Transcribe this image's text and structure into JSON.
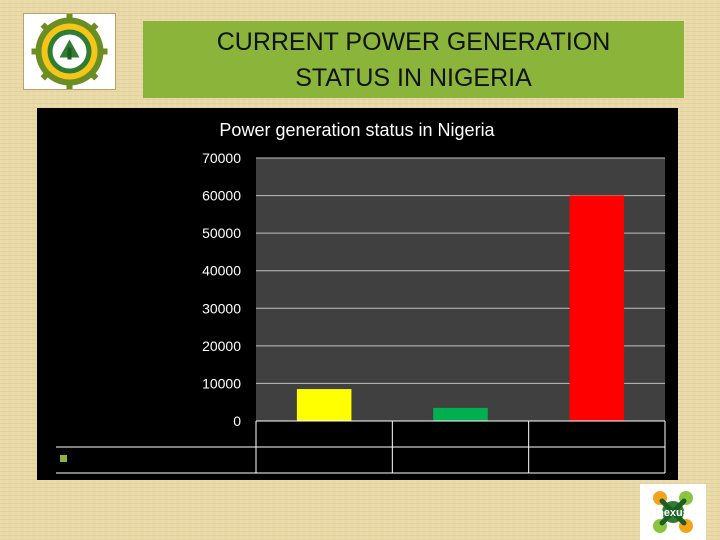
{
  "header": {
    "title": "CURRENT POWER GENERATION\nSTATUS IN NIGERIA"
  },
  "logo_left": {
    "icon": "gear-emblem-logo-icon"
  },
  "logo_right": {
    "icon": "nexus-logo-icon",
    "text": "nexus"
  },
  "colors": {
    "title_banner": "#8ab43a",
    "chart_background": "#000000",
    "plot_area": "#404040"
  },
  "chart_data": {
    "type": "bar",
    "title": "Power generation status in Nigeria",
    "categories": [
      "",
      "",
      ""
    ],
    "values": [
      8500,
      3500,
      60000
    ],
    "bar_colors": [
      "#ffff00",
      "#00b050",
      "#ff0000"
    ],
    "ylim": [
      0,
      70000
    ],
    "yticks": [
      0,
      10000,
      20000,
      30000,
      40000,
      50000,
      60000,
      70000
    ],
    "xlabel": "",
    "ylabel": "",
    "grid": true,
    "legend": "bottom-left",
    "data_table": true
  }
}
